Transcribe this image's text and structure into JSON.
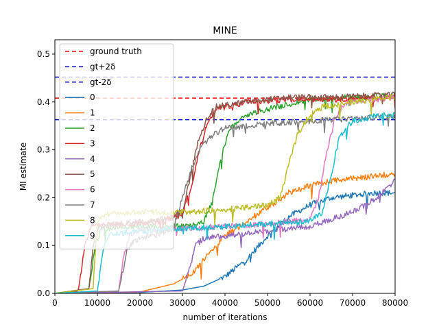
{
  "chart_data": {
    "type": "line",
    "title": "MINE",
    "xlabel": "number of iterations",
    "ylabel": "MI estimate",
    "xlim": [
      0,
      80000
    ],
    "ylim": [
      0,
      0.53
    ],
    "xticks": [
      0,
      10000,
      20000,
      30000,
      40000,
      50000,
      60000,
      70000,
      80000
    ],
    "xtick_labels": [
      "0",
      "10000",
      "20000",
      "30000",
      "40000",
      "50000",
      "60000",
      "70000",
      "80000"
    ],
    "yticks": [
      0.0,
      0.1,
      0.2,
      0.3,
      0.4,
      0.5
    ],
    "ytick_labels": [
      "0.0",
      "0.1",
      "0.2",
      "0.3",
      "0.4",
      "0.5"
    ],
    "grid": false,
    "legend_position": "top-left",
    "reference_lines": [
      {
        "name": "ground truth",
        "y": 0.408,
        "color": "#ff0000",
        "style": "dashed"
      },
      {
        "name": "gt+2δ",
        "y": 0.452,
        "color": "#0000cc",
        "style": "dashed"
      },
      {
        "name": "gt-2δ",
        "y": 0.363,
        "color": "#0000cc",
        "style": "dashed"
      }
    ],
    "series": [
      {
        "name": "0",
        "color": "#1f77b4",
        "points": [
          [
            0,
            0
          ],
          [
            20000,
            0.002
          ],
          [
            30000,
            0.007
          ],
          [
            35000,
            0.015
          ],
          [
            40000,
            0.035
          ],
          [
            45000,
            0.07
          ],
          [
            50000,
            0.12
          ],
          [
            55000,
            0.16
          ],
          [
            60000,
            0.185
          ],
          [
            65000,
            0.2
          ],
          [
            70000,
            0.205
          ],
          [
            75000,
            0.21
          ],
          [
            80000,
            0.21
          ]
        ]
      },
      {
        "name": "1",
        "color": "#ff7f0e",
        "points": [
          [
            0,
            0
          ],
          [
            20000,
            0.003
          ],
          [
            28000,
            0.02
          ],
          [
            32000,
            0.04
          ],
          [
            35000,
            0.07
          ],
          [
            40000,
            0.12
          ],
          [
            45000,
            0.15
          ],
          [
            50000,
            0.18
          ],
          [
            55000,
            0.21
          ],
          [
            60000,
            0.225
          ],
          [
            65000,
            0.235
          ],
          [
            70000,
            0.24
          ],
          [
            75000,
            0.245
          ],
          [
            80000,
            0.25
          ]
        ]
      },
      {
        "name": "2",
        "color": "#2ca02c",
        "points": [
          [
            0,
            0
          ],
          [
            8000,
            0.01
          ],
          [
            9500,
            0.1
          ],
          [
            11000,
            0.135
          ],
          [
            20000,
            0.14
          ],
          [
            30000,
            0.14
          ],
          [
            35000,
            0.15
          ],
          [
            37000,
            0.19
          ],
          [
            39000,
            0.28
          ],
          [
            41000,
            0.34
          ],
          [
            44000,
            0.37
          ],
          [
            50000,
            0.385
          ],
          [
            55000,
            0.395
          ],
          [
            60000,
            0.405
          ],
          [
            70000,
            0.41
          ],
          [
            80000,
            0.415
          ]
        ]
      },
      {
        "name": "3",
        "color": "#d62728",
        "points": [
          [
            0,
            0
          ],
          [
            5500,
            0.005
          ],
          [
            7000,
            0.1
          ],
          [
            8500,
            0.14
          ],
          [
            15000,
            0.145
          ],
          [
            25000,
            0.15
          ],
          [
            30000,
            0.165
          ],
          [
            32000,
            0.22
          ],
          [
            34000,
            0.3
          ],
          [
            36000,
            0.36
          ],
          [
            38000,
            0.385
          ],
          [
            45000,
            0.4
          ],
          [
            55000,
            0.405
          ],
          [
            65000,
            0.405
          ],
          [
            80000,
            0.41
          ]
        ]
      },
      {
        "name": "4",
        "color": "#9467bd",
        "points": [
          [
            0,
            0
          ],
          [
            30000,
            0.005
          ],
          [
            32000,
            0.06
          ],
          [
            33000,
            0.1
          ],
          [
            35000,
            0.115
          ],
          [
            40000,
            0.12
          ],
          [
            50000,
            0.13
          ],
          [
            60000,
            0.14
          ],
          [
            65000,
            0.155
          ],
          [
            70000,
            0.17
          ],
          [
            75000,
            0.195
          ],
          [
            80000,
            0.235
          ]
        ]
      },
      {
        "name": "5",
        "color": "#8c564b",
        "points": [
          [
            0,
            0
          ],
          [
            8000,
            0.01
          ],
          [
            9000,
            0.1
          ],
          [
            10500,
            0.14
          ],
          [
            20000,
            0.15
          ],
          [
            25000,
            0.155
          ],
          [
            30000,
            0.17
          ],
          [
            32000,
            0.25
          ],
          [
            34000,
            0.33
          ],
          [
            36000,
            0.37
          ],
          [
            38000,
            0.39
          ],
          [
            45000,
            0.4
          ],
          [
            55000,
            0.41
          ],
          [
            65000,
            0.41
          ],
          [
            80000,
            0.415
          ]
        ]
      },
      {
        "name": "6",
        "color": "#e377c2",
        "points": [
          [
            0,
            0
          ],
          [
            15000,
            0.005
          ],
          [
            16000,
            0.07
          ],
          [
            17500,
            0.12
          ],
          [
            19000,
            0.13
          ],
          [
            30000,
            0.135
          ],
          [
            40000,
            0.14
          ],
          [
            50000,
            0.145
          ],
          [
            60000,
            0.155
          ],
          [
            62000,
            0.2
          ],
          [
            64000,
            0.3
          ],
          [
            66000,
            0.37
          ],
          [
            68000,
            0.395
          ],
          [
            70000,
            0.4
          ],
          [
            80000,
            0.41
          ]
        ]
      },
      {
        "name": "7",
        "color": "#7f7f7f",
        "points": [
          [
            0,
            0
          ],
          [
            15000,
            0.005
          ],
          [
            17000,
            0.09
          ],
          [
            18500,
            0.11
          ],
          [
            25000,
            0.125
          ],
          [
            28000,
            0.14
          ],
          [
            30000,
            0.2
          ],
          [
            32000,
            0.26
          ],
          [
            34000,
            0.3
          ],
          [
            37000,
            0.33
          ],
          [
            40000,
            0.345
          ],
          [
            50000,
            0.355
          ],
          [
            60000,
            0.36
          ],
          [
            70000,
            0.365
          ],
          [
            80000,
            0.37
          ]
        ]
      },
      {
        "name": "8",
        "color": "#bcbd22",
        "points": [
          [
            0,
            0
          ],
          [
            9000,
            0.01
          ],
          [
            10000,
            0.15
          ],
          [
            12000,
            0.165
          ],
          [
            20000,
            0.17
          ],
          [
            30000,
            0.17
          ],
          [
            40000,
            0.175
          ],
          [
            50000,
            0.185
          ],
          [
            53000,
            0.2
          ],
          [
            55000,
            0.27
          ],
          [
            57000,
            0.33
          ],
          [
            60000,
            0.375
          ],
          [
            63000,
            0.39
          ],
          [
            70000,
            0.4
          ],
          [
            80000,
            0.41
          ]
        ]
      },
      {
        "name": "9",
        "color": "#17becf",
        "points": [
          [
            0,
            0
          ],
          [
            10000,
            0.005
          ],
          [
            11500,
            0.1
          ],
          [
            13000,
            0.125
          ],
          [
            20000,
            0.13
          ],
          [
            30000,
            0.135
          ],
          [
            40000,
            0.14
          ],
          [
            50000,
            0.145
          ],
          [
            60000,
            0.15
          ],
          [
            63000,
            0.17
          ],
          [
            65000,
            0.25
          ],
          [
            67000,
            0.33
          ],
          [
            70000,
            0.36
          ],
          [
            75000,
            0.37
          ],
          [
            80000,
            0.375
          ]
        ]
      }
    ]
  }
}
